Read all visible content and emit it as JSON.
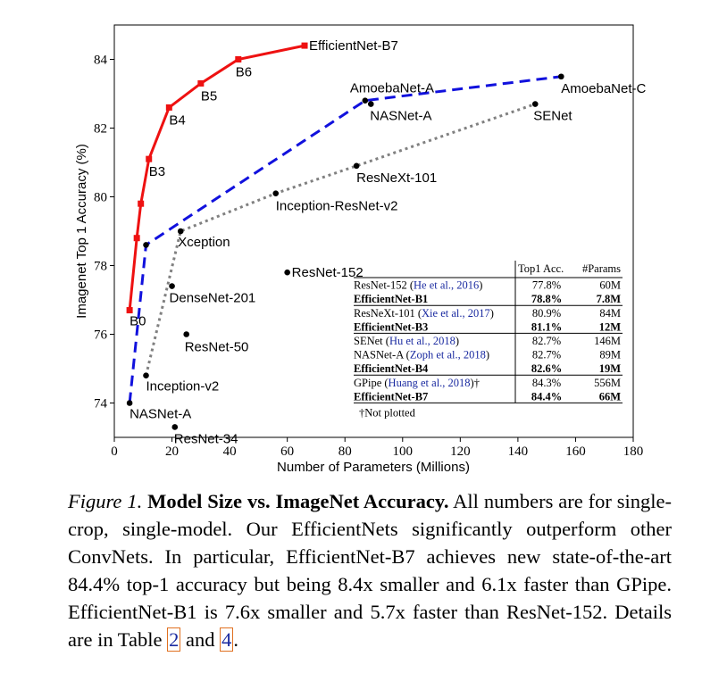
{
  "chart_data": {
    "type": "line",
    "xlabel": "Number of Parameters (Millions)",
    "ylabel": "Imagenet Top 1 Accuracy (%)",
    "xlim": [
      0,
      180
    ],
    "ylim": [
      73,
      85
    ],
    "xticks": [
      0,
      20,
      40,
      60,
      80,
      100,
      120,
      140,
      160,
      180
    ],
    "yticks": [
      74,
      76,
      78,
      80,
      82,
      84
    ],
    "grid": false,
    "series": [
      {
        "kind": "efficientnet",
        "color": "#ee1111",
        "x": [
          5.3,
          7.8,
          9.2,
          12,
          19,
          30,
          43,
          66
        ],
        "y": [
          76.7,
          78.8,
          79.8,
          81.1,
          82.6,
          83.3,
          84.0,
          84.4
        ],
        "labels": [
          "B0",
          "",
          "",
          "B3",
          "B4",
          "B5",
          "B6",
          "EfficientNet-B7"
        ]
      },
      {
        "kind": "nas",
        "color": "#1111dd",
        "x": [
          5.3,
          11,
          87,
          155
        ],
        "y": [
          74.0,
          78.6,
          82.8,
          83.5
        ],
        "labels": [
          "NASNet-A",
          "",
          "AmoebaNet-A",
          "AmoebaNet-C"
        ]
      },
      {
        "kind": "inception",
        "color": "#808080",
        "x": [
          11,
          23,
          56,
          84,
          146
        ],
        "y": [
          74.8,
          79.0,
          80.1,
          80.9,
          82.7
        ],
        "labels": [
          "Inception-v2",
          "Xception",
          "Inception-ResNet-v2",
          "ResNeXt-101",
          "SENet"
        ]
      }
    ],
    "scatter": [
      {
        "x": 20,
        "y": 77.4,
        "label": "DenseNet-201"
      },
      {
        "x": 25,
        "y": 76.0,
        "label": "ResNet-50"
      },
      {
        "x": 60,
        "y": 77.8,
        "label": "ResNet-152"
      },
      {
        "x": 21,
        "y": 73.3,
        "label": "ResNet-34"
      },
      {
        "x": 89,
        "y": 82.7,
        "label": "NASNet-A"
      }
    ],
    "table": {
      "header": [
        "Top1 Acc.",
        "#Params"
      ],
      "groups": [
        [
          {
            "name": "ResNet-152",
            "ref": "He et al., 2016",
            "acc": "77.8%",
            "params": "60M",
            "bold": false
          },
          {
            "name": "EfficientNet-B1",
            "ref": "",
            "acc": "78.8%",
            "params": "7.8M",
            "bold": true
          }
        ],
        [
          {
            "name": "ResNeXt-101",
            "ref": "Xie et al., 2017",
            "acc": "80.9%",
            "params": "84M",
            "bold": false
          },
          {
            "name": "EfficientNet-B3",
            "ref": "",
            "acc": "81.1%",
            "params": "12M",
            "bold": true
          }
        ],
        [
          {
            "name": "SENet",
            "ref": "Hu et al., 2018",
            "acc": "82.7%",
            "params": "146M",
            "bold": false
          },
          {
            "name": "NASNet-A",
            "ref": "Zoph et al., 2018",
            "acc": "82.7%",
            "params": "89M",
            "bold": false
          },
          {
            "name": "EfficientNet-B4",
            "ref": "",
            "acc": "82.6%",
            "params": "19M",
            "bold": true
          }
        ],
        [
          {
            "name": "GPipe",
            "ref": "Huang et al., 2018",
            "acc": "84.3%",
            "params": "556M",
            "bold": false,
            "dagger": "†"
          },
          {
            "name": "EfficientNet-B7",
            "ref": "",
            "acc": "84.4%",
            "params": "66M",
            "bold": true
          }
        ]
      ],
      "footnote": "†Not plotted"
    }
  },
  "caption": {
    "figure": "Figure 1.",
    "title": "Model Size vs. ImageNet Accuracy.",
    "text1": " All numbers are for single-crop, single-model. Our EfficientNets significantly outperform other ConvNets. In particular, EfficientNet-B7 achieves new state-of-the-art 84.4% top-1 accuracy but being 8.4x smaller and 6.1x faster than GPipe. EfficientNet-B1 is 7.6x smaller and 5.7x faster than ResNet-152. Details are in Table ",
    "ref1": "2",
    "text2": " and ",
    "ref2": "4",
    "text3": "."
  }
}
